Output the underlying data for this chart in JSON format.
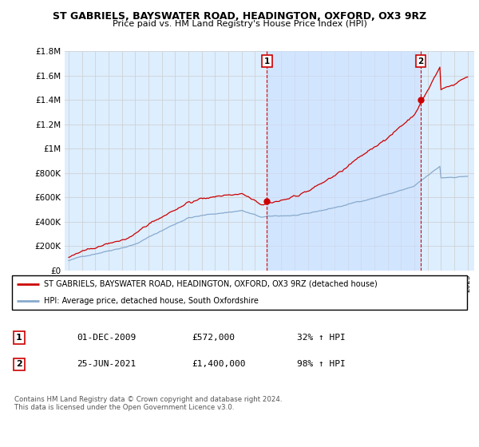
{
  "title": "ST GABRIELS, BAYSWATER ROAD, HEADINGTON, OXFORD, OX3 9RZ",
  "subtitle": "Price paid vs. HM Land Registry's House Price Index (HPI)",
  "red_label": "ST GABRIELS, BAYSWATER ROAD, HEADINGTON, OXFORD, OX3 9RZ (detached house)",
  "blue_label": "HPI: Average price, detached house, South Oxfordshire",
  "footnote": "Contains HM Land Registry data © Crown copyright and database right 2024.\nThis data is licensed under the Open Government Licence v3.0.",
  "ylim": [
    0,
    1800000
  ],
  "yticks": [
    0,
    200000,
    400000,
    600000,
    800000,
    1000000,
    1200000,
    1400000,
    1600000,
    1800000
  ],
  "ytick_labels": [
    "£0",
    "£200K",
    "£400K",
    "£600K",
    "£800K",
    "£1M",
    "£1.2M",
    "£1.4M",
    "£1.6M",
    "£1.8M"
  ],
  "transaction1": {
    "label": "1",
    "date": "01-DEC-2009",
    "price": 572000,
    "pct": "32%",
    "direction": "↑",
    "year": 2009.917
  },
  "transaction2": {
    "label": "2",
    "date": "25-JUN-2021",
    "price": 1400000,
    "pct": "98%",
    "direction": "↑",
    "year": 2021.479
  },
  "red_color": "#cc0000",
  "blue_color": "#88aacc",
  "bg_color": "#ddeeff",
  "shade_color": "#cce0ff",
  "dashed_color": "#cc0000",
  "grid_color": "#cccccc"
}
